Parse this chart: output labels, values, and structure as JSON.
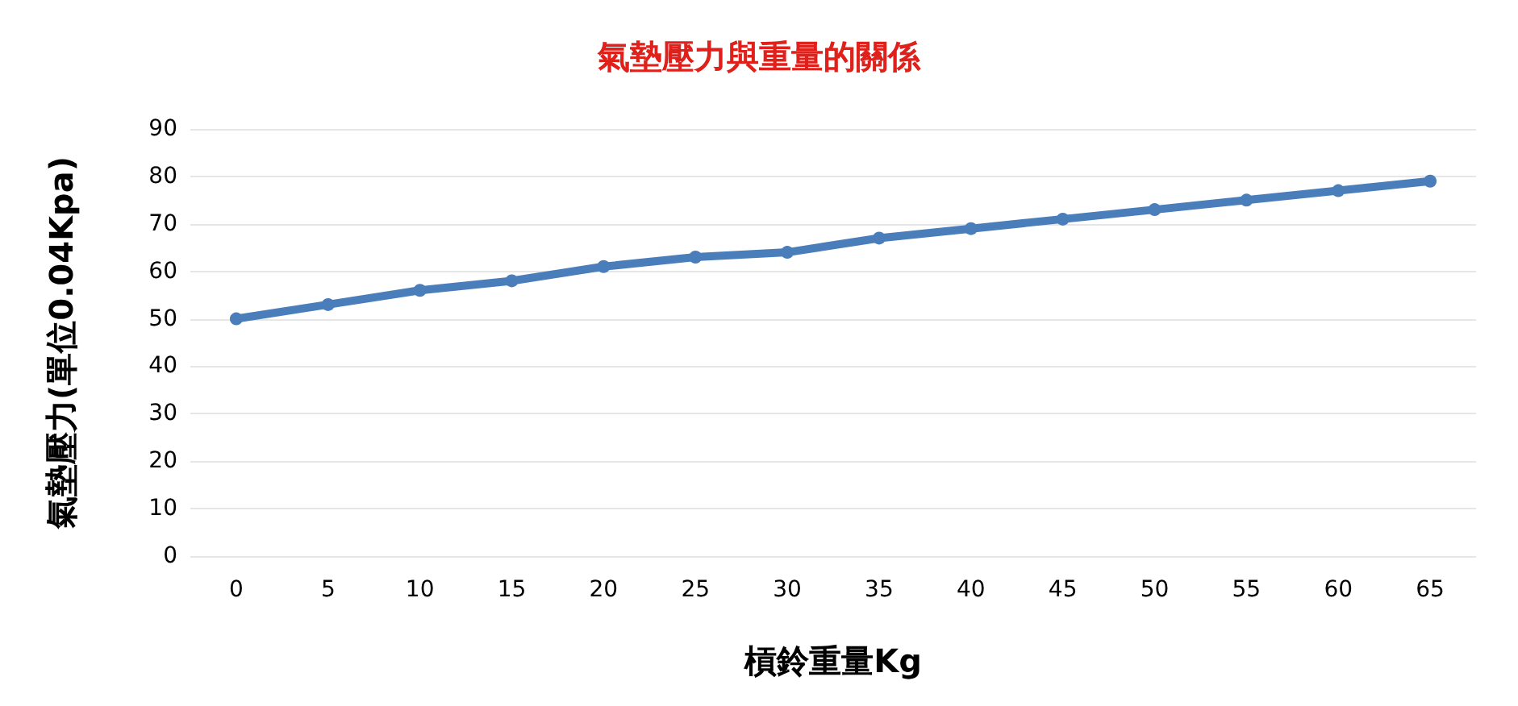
{
  "chart_data": {
    "type": "line",
    "title": "氣墊壓力與重量的關係",
    "xlabel": "槓鈴重量Kg",
    "ylabel": "氣墊壓力(單位0.04Kpa)",
    "categories": [
      "0",
      "5",
      "10",
      "15",
      "20",
      "25",
      "30",
      "35",
      "40",
      "45",
      "50",
      "55",
      "60",
      "65"
    ],
    "series": [
      {
        "color": "#4a7ebb",
        "values": [
          50,
          53,
          56,
          58,
          61,
          63,
          64,
          67,
          69,
          71,
          73,
          75,
          77,
          79
        ]
      }
    ],
    "ylim": [
      0,
      90
    ],
    "yticks": [
      0,
      10,
      20,
      30,
      40,
      50,
      60,
      70,
      80,
      90
    ],
    "grid": "y",
    "marker": "circle",
    "line_style": "solid"
  }
}
